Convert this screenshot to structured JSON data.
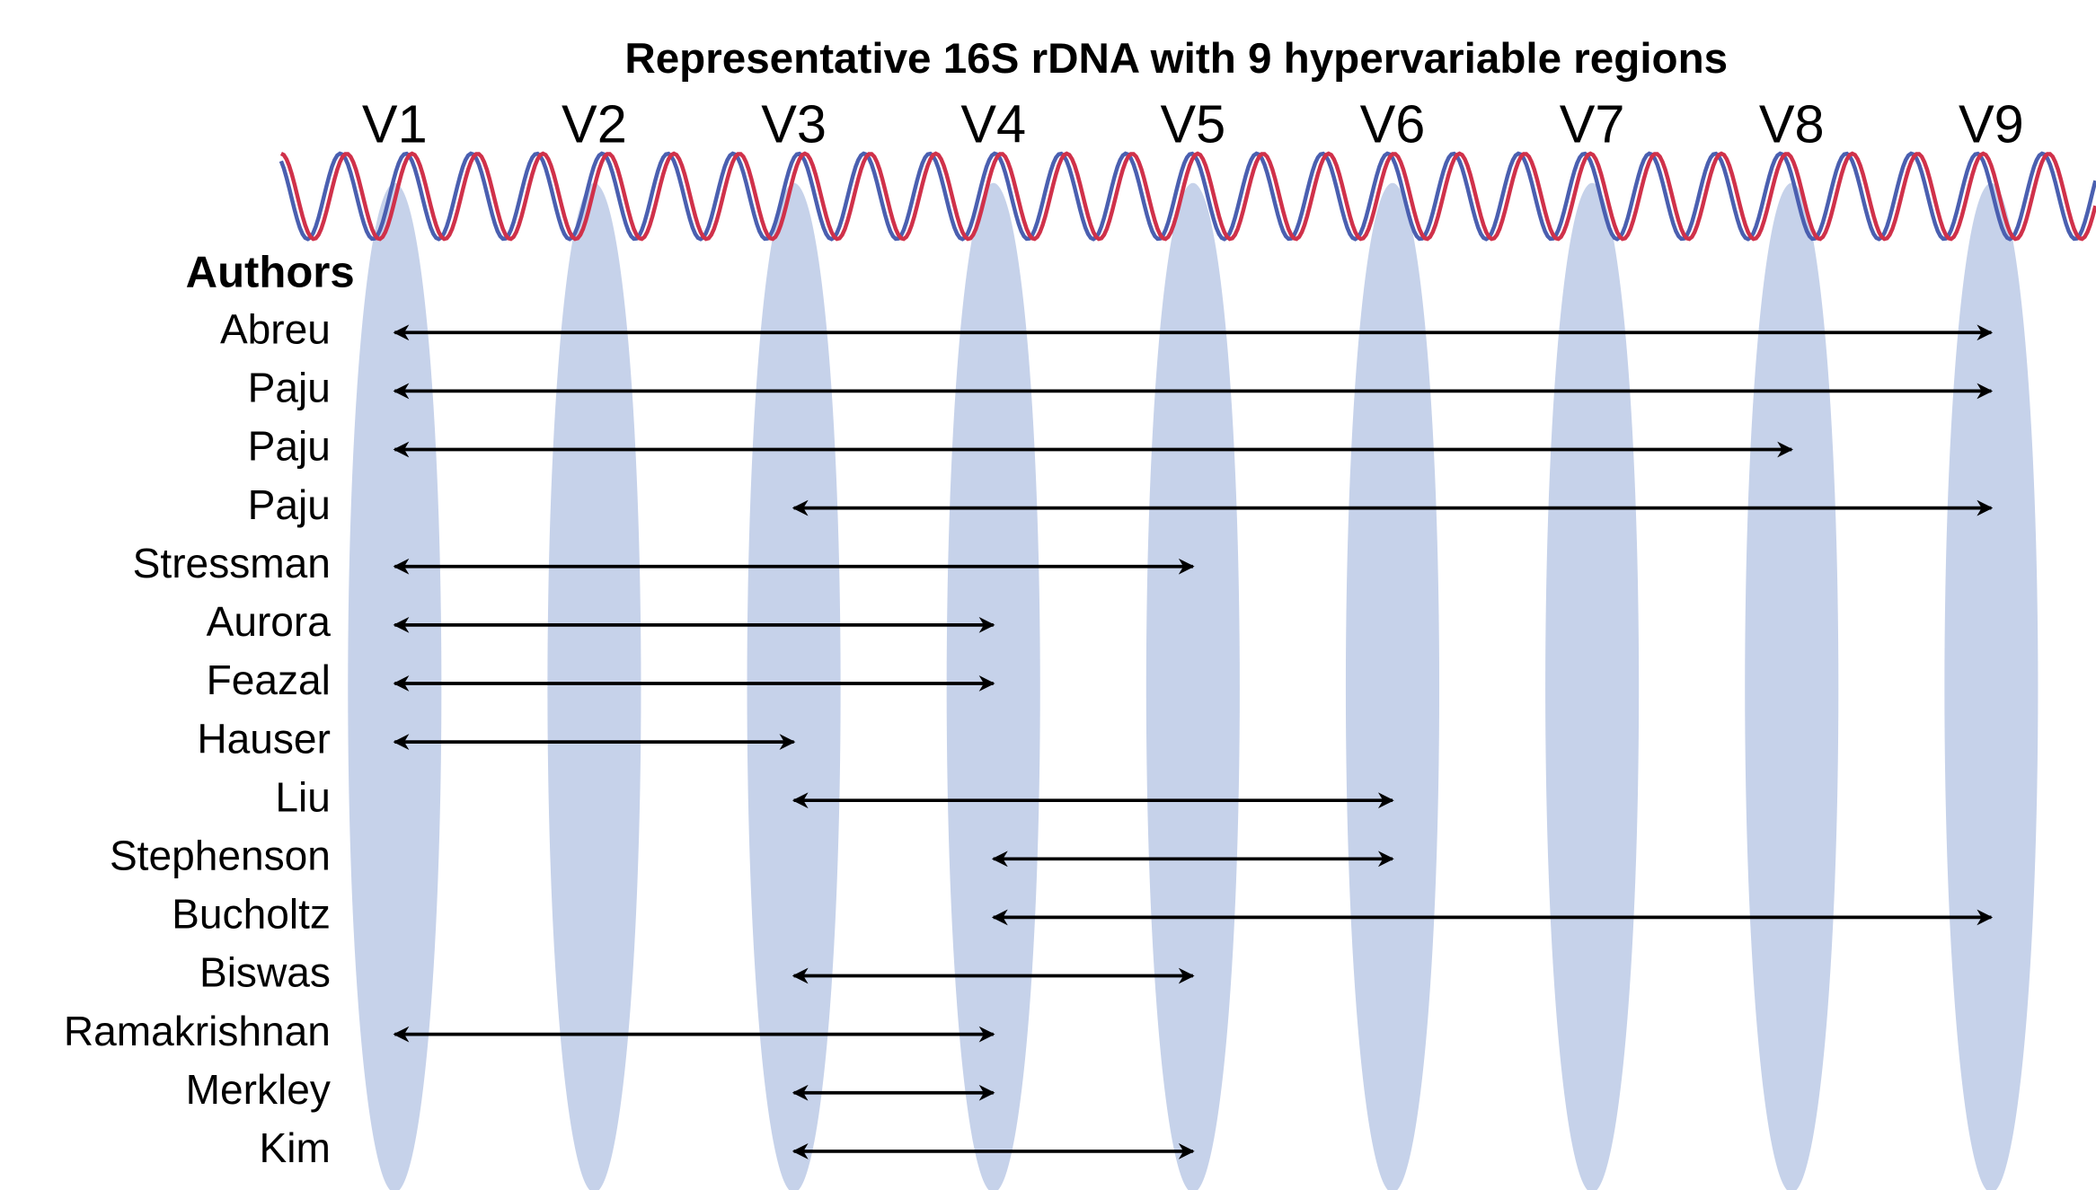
{
  "title": "Representative 16S rDNA with 9 hypervariable regions",
  "regions": [
    "V1",
    "V2",
    "V3",
    "V4",
    "V5",
    "V6",
    "V7",
    "V8",
    "V9"
  ],
  "authors_heading": "Authors",
  "rows": [
    {
      "name": "Abreu",
      "from": 1,
      "to": 9
    },
    {
      "name": "Paju",
      "from": 1,
      "to": 9
    },
    {
      "name": "Paju",
      "from": 1,
      "to": 8
    },
    {
      "name": "Paju",
      "from": 3,
      "to": 9
    },
    {
      "name": "Stressman",
      "from": 1,
      "to": 5
    },
    {
      "name": "Aurora",
      "from": 1,
      "to": 4
    },
    {
      "name": "Feazal",
      "from": 1,
      "to": 4
    },
    {
      "name": "Hauser",
      "from": 1,
      "to": 3
    },
    {
      "name": "Liu",
      "from": 3,
      "to": 6
    },
    {
      "name": "Stephenson",
      "from": 4,
      "to": 6
    },
    {
      "name": "Bucholtz",
      "from": 4,
      "to": 9
    },
    {
      "name": "Biswas",
      "from": 3,
      "to": 5
    },
    {
      "name": "Ramakrishnan",
      "from": 1,
      "to": 4
    },
    {
      "name": "Merkley",
      "from": 3,
      "to": 4
    },
    {
      "name": "Kim",
      "from": 3,
      "to": 5
    }
  ]
}
